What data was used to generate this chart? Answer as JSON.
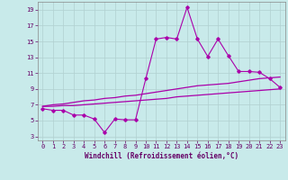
{
  "title": "",
  "xlabel": "Windchill (Refroidissement éolien,°C)",
  "ylabel": "",
  "background_color": "#c8eaea",
  "grid_color": "#b0d0d0",
  "line_color": "#aa00aa",
  "x": [
    0,
    1,
    2,
    3,
    4,
    5,
    6,
    7,
    8,
    9,
    10,
    11,
    12,
    13,
    14,
    15,
    16,
    17,
    18,
    19,
    20,
    21,
    22,
    23
  ],
  "y_main": [
    6.5,
    6.3,
    6.3,
    5.7,
    5.7,
    5.2,
    3.5,
    5.2,
    5.1,
    5.1,
    10.3,
    15.3,
    15.5,
    15.3,
    19.3,
    15.3,
    13.1,
    15.3,
    13.2,
    11.2,
    11.2,
    11.1,
    10.3,
    9.2
  ],
  "y_line2": [
    6.8,
    7.0,
    7.1,
    7.3,
    7.5,
    7.6,
    7.8,
    7.9,
    8.1,
    8.2,
    8.4,
    8.6,
    8.8,
    9.0,
    9.2,
    9.4,
    9.5,
    9.6,
    9.7,
    9.9,
    10.1,
    10.3,
    10.4,
    10.5
  ],
  "y_line3": [
    6.8,
    6.8,
    6.9,
    6.9,
    7.0,
    7.1,
    7.2,
    7.3,
    7.4,
    7.5,
    7.6,
    7.7,
    7.8,
    8.0,
    8.1,
    8.2,
    8.3,
    8.4,
    8.5,
    8.6,
    8.7,
    8.8,
    8.9,
    9.0
  ],
  "yticks": [
    3,
    5,
    7,
    9,
    11,
    13,
    15,
    17,
    19
  ],
  "xticks": [
    0,
    1,
    2,
    3,
    4,
    5,
    6,
    7,
    8,
    9,
    10,
    11,
    12,
    13,
    14,
    15,
    16,
    17,
    18,
    19,
    20,
    21,
    22,
    23
  ],
  "ylim": [
    2.5,
    20.0
  ],
  "xlim": [
    -0.5,
    23.5
  ],
  "xlabel_fontsize": 5.5,
  "tick_fontsize": 5.0
}
